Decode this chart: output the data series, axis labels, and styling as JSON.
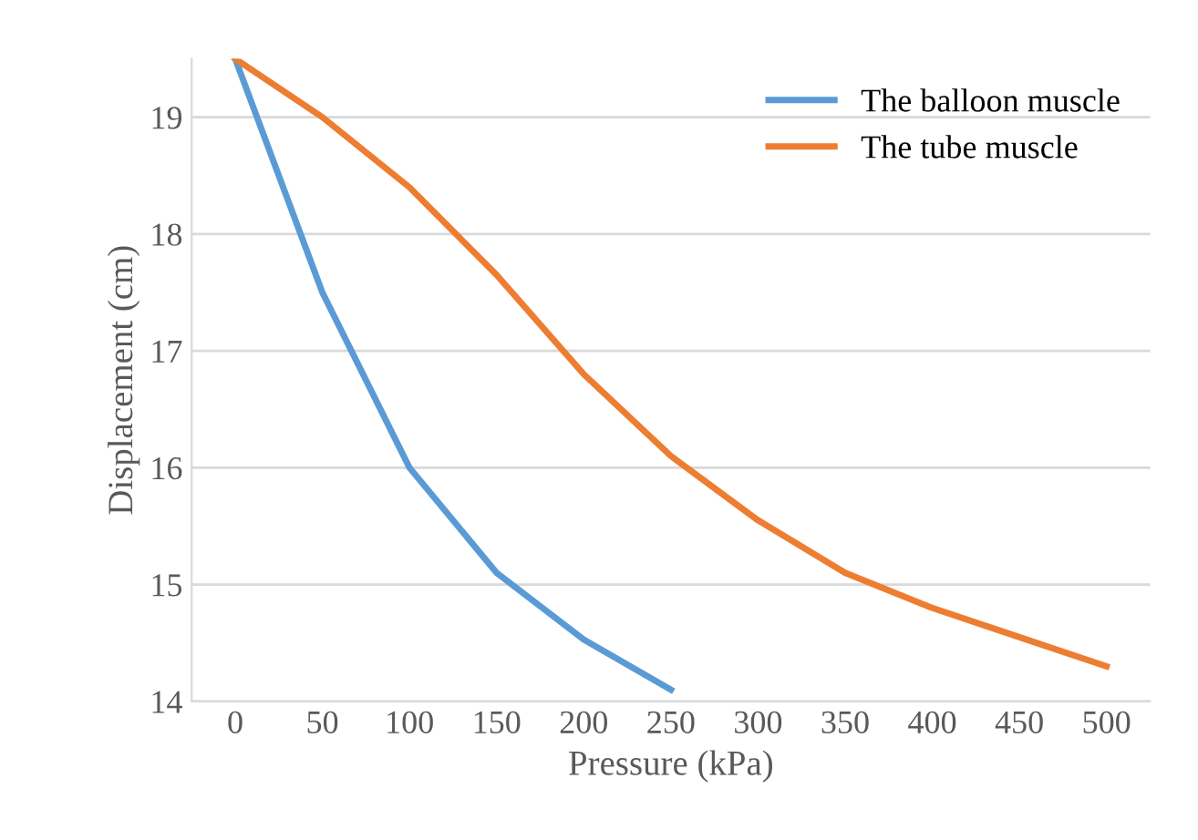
{
  "chart_data": {
    "type": "line",
    "xlabel": "Pressure (kPa)",
    "ylabel": "Displacement (cm)",
    "categories": [
      "0",
      "50",
      "100",
      "150",
      "200",
      "250",
      "300",
      "350",
      "400",
      "450",
      "500"
    ],
    "series": [
      {
        "name": "The balloon muscle",
        "color": "#5b9bd5",
        "values": [
          19.5,
          17.5,
          16.0,
          15.1,
          14.53,
          14.1,
          null,
          null,
          null,
          null,
          null
        ]
      },
      {
        "name": "The tube muscle",
        "color": "#ed7d31",
        "values": [
          19.5,
          19.0,
          18.4,
          17.65,
          16.8,
          16.1,
          15.55,
          15.1,
          14.8,
          14.55,
          14.3
        ]
      }
    ],
    "ylim": [
      14,
      19.5
    ],
    "yticks": [
      14,
      15,
      16,
      17,
      18,
      19
    ],
    "grid": "y",
    "legend": "top right",
    "marker": "none",
    "line_style": "solid"
  }
}
